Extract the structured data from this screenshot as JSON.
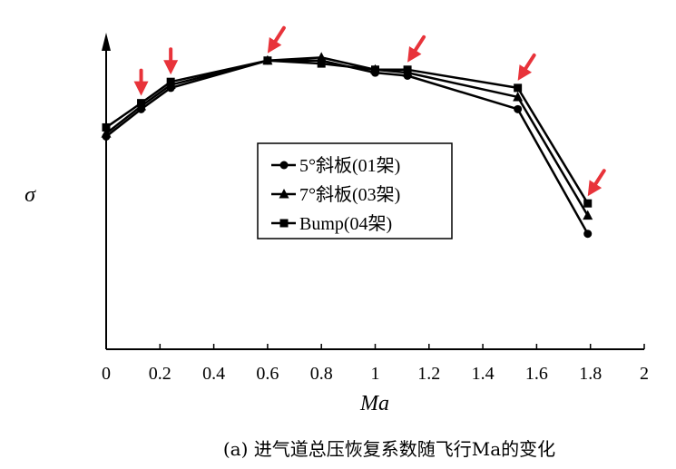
{
  "chart_data": {
    "type": "line",
    "xlabel": "Ma",
    "ylabel": "σ",
    "xlim": [
      0,
      2
    ],
    "x_ticks": [
      "0",
      "0.2",
      "0.4",
      "0.6",
      "0.8",
      "1",
      "1.2",
      "1.4",
      "1.6",
      "1.8",
      "2"
    ],
    "y_ticks": false,
    "grid": false,
    "legend_position": "center",
    "series": [
      {
        "name": "5°斜板(01架)",
        "marker": "circle",
        "color": "#000000",
        "x": [
          0,
          0.13,
          0.24,
          0.6,
          0.8,
          1.0,
          1.12,
          1.53,
          1.79
        ],
        "y": [
          0.7,
          0.79,
          0.86,
          0.95,
          0.95,
          0.91,
          0.9,
          0.79,
          0.38
        ]
      },
      {
        "name": "7°斜板(03架)",
        "marker": "triangle",
        "color": "#000000",
        "x": [
          0,
          0.13,
          0.24,
          0.6,
          0.8,
          1.0,
          1.12,
          1.53,
          1.79
        ],
        "y": [
          0.71,
          0.8,
          0.87,
          0.95,
          0.96,
          0.92,
          0.91,
          0.83,
          0.44
        ]
      },
      {
        "name": "Bump(04架)",
        "marker": "square",
        "color": "#000000",
        "x": [
          0,
          0.13,
          0.24,
          0.6,
          0.8,
          1.0,
          1.12,
          1.53,
          1.79
        ],
        "y": [
          0.73,
          0.81,
          0.88,
          0.95,
          0.94,
          0.92,
          0.92,
          0.86,
          0.48
        ]
      }
    ],
    "annotations": {
      "arrow_color": "#e8333a",
      "arrow_x": [
        0.13,
        0.24,
        0.6,
        1.12,
        1.53,
        1.79
      ]
    }
  },
  "caption": "(a) 进气道总压恢复系数随飞行Ma的变化"
}
